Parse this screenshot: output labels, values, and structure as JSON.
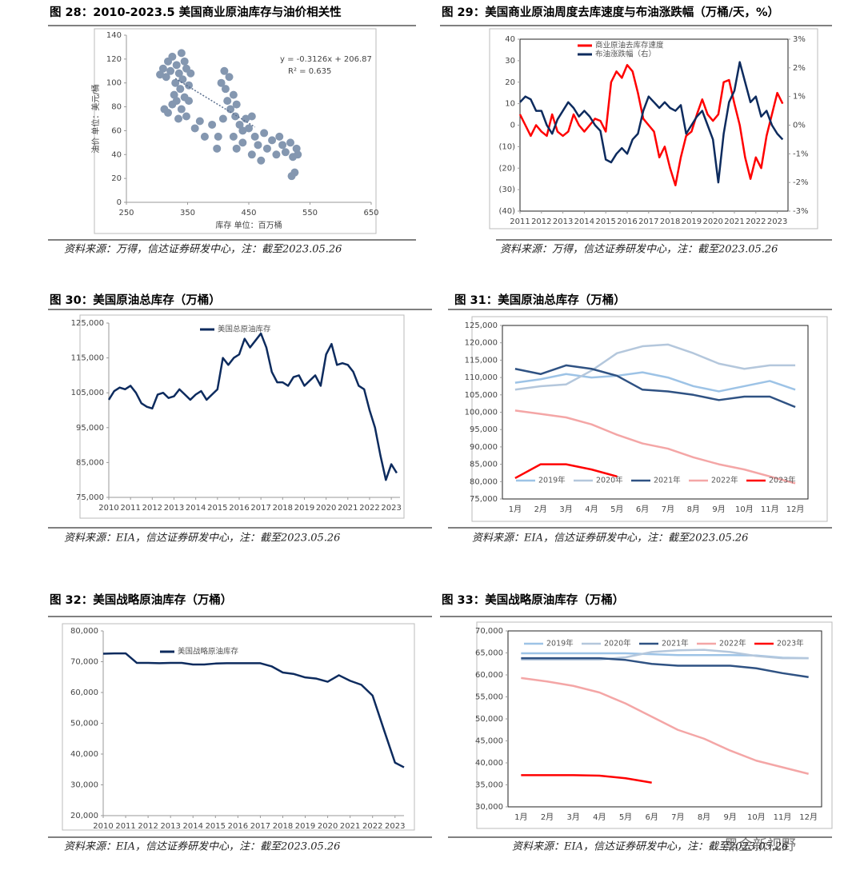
{
  "watermark": "黑金新视野",
  "chart_data": [
    {
      "type": "scatter",
      "title": "图 28：2010-2023.5 美国商业原油库存与油价相关性",
      "source": "资料来源：万得，信达证券研发中心，注：截至2023.05.26",
      "xlabel": "库存 单位：百万桶",
      "ylabel": "油价 单位：美元/桶",
      "annotations": [
        "y = -0.3126x + 206.87",
        "R² = 0.635"
      ],
      "color": "#8497b0",
      "x": [
        305,
        310,
        315,
        318,
        322,
        325,
        330,
        332,
        336,
        340,
        342,
        345,
        348,
        352,
        355,
        338,
        328,
        312,
        318,
        325,
        332,
        340,
        348,
        352,
        345,
        335,
        362,
        370,
        378,
        405,
        410,
        412,
        415,
        418,
        420,
        425,
        428,
        430,
        435,
        440,
        408,
        400,
        425,
        430,
        440,
        450,
        455,
        460,
        465,
        470,
        475,
        480,
        488,
        495,
        500,
        505,
        510,
        518,
        522,
        528,
        530,
        525,
        520,
        445,
        455,
        390,
        398
      ],
      "values": [
        107,
        112,
        105,
        118,
        110,
        122,
        100,
        115,
        108,
        125,
        103,
        118,
        112,
        98,
        108,
        95,
        90,
        78,
        75,
        82,
        85,
        78,
        72,
        85,
        88,
        70,
        62,
        68,
        55,
        100,
        110,
        95,
        85,
        105,
        78,
        90,
        72,
        82,
        65,
        60,
        70,
        55,
        55,
        45,
        50,
        62,
        40,
        55,
        48,
        35,
        58,
        45,
        52,
        40,
        55,
        48,
        42,
        50,
        38,
        45,
        40,
        25,
        22,
        70,
        72,
        65,
        45
      ],
      "trendline": {
        "x": [
          330,
          460
        ],
        "values": [
          103.7,
          63.1
        ]
      },
      "xlim": [
        250,
        650
      ],
      "xticks": [
        250,
        350,
        450,
        550,
        650
      ],
      "ylim": [
        0,
        140
      ],
      "yticks": [
        0,
        20,
        40,
        60,
        80,
        100,
        120,
        140
      ],
      "grid": false
    },
    {
      "type": "line",
      "title": "图 29：美国商业原油周度去库速度与布油涨跌幅（万桶/天，%）",
      "source": "资料来源：万得，信达证券研发中心，注：截至2023.05.26",
      "x": [
        2011,
        2011.25,
        2011.5,
        2011.75,
        2012,
        2012.25,
        2012.5,
        2012.75,
        2013,
        2013.25,
        2013.5,
        2013.75,
        2014,
        2014.25,
        2014.5,
        2014.75,
        2015,
        2015.25,
        2015.5,
        2015.75,
        2016,
        2016.25,
        2016.5,
        2016.75,
        2017,
        2017.25,
        2017.5,
        2017.75,
        2018,
        2018.25,
        2018.5,
        2018.75,
        2019,
        2019.25,
        2019.5,
        2019.75,
        2020,
        2020.25,
        2020.5,
        2020.75,
        2021,
        2021.25,
        2021.5,
        2021.75,
        2022,
        2022.25,
        2022.5,
        2022.75,
        2023,
        2023.25
      ],
      "series": [
        {
          "name": "商业原油去库存速度",
          "color": "#ff0000",
          "values": [
            5,
            0,
            -5,
            0,
            -3,
            -5,
            5,
            -3,
            -5,
            -3,
            5,
            0,
            -3,
            0,
            3,
            2,
            -3,
            20,
            25,
            22,
            28,
            25,
            15,
            3,
            0,
            -3,
            -15,
            -10,
            -20,
            -28,
            -15,
            -5,
            -3,
            5,
            12,
            5,
            2,
            5,
            20,
            21,
            10,
            0,
            -15,
            -25,
            -15,
            -20,
            -5,
            5,
            15,
            10
          ]
        },
        {
          "name": "布油涨跌幅（右）",
          "color": "#0d2b5e",
          "axis": "y2",
          "values": [
            0.8,
            1.0,
            0.9,
            0.5,
            0.5,
            0.0,
            -0.3,
            0.2,
            0.5,
            0.8,
            0.6,
            0.3,
            0.5,
            0.3,
            0.0,
            -0.2,
            -1.2,
            -1.3,
            -1.0,
            -0.8,
            -1.0,
            -0.5,
            -0.3,
            0.5,
            1.0,
            0.8,
            0.6,
            0.8,
            0.6,
            0.5,
            0.7,
            -0.3,
            0.0,
            0.3,
            0.5,
            0.0,
            -0.5,
            -2.0,
            -0.3,
            0.8,
            1.2,
            2.2,
            1.5,
            0.8,
            1.0,
            0.3,
            0.5,
            0.0,
            -0.3,
            -0.5
          ]
        }
      ],
      "xlim": [
        2011,
        2023.5
      ],
      "xticks": [
        2011,
        2012,
        2013,
        2014,
        2015,
        2016,
        2017,
        2018,
        2019,
        2020,
        2021,
        2022,
        2023
      ],
      "ylim": [
        -40,
        40
      ],
      "yticks": [
        {
          "value": -40,
          "label": "(40)"
        },
        {
          "value": -30,
          "label": "(30)"
        },
        {
          "value": -20,
          "label": "(20)"
        },
        {
          "value": -10,
          "label": "(10)"
        },
        0,
        10,
        20,
        30,
        40
      ],
      "y2lim": [
        -3,
        3
      ],
      "y2ticks": [
        {
          "value": -3,
          "label": "-3%"
        },
        {
          "value": -2,
          "label": "-2%"
        },
        {
          "value": -1,
          "label": "-1%"
        },
        {
          "value": 0,
          "label": "0%"
        },
        {
          "value": 1,
          "label": "1%"
        },
        {
          "value": 2,
          "label": "2%"
        },
        {
          "value": 3,
          "label": "3%"
        }
      ],
      "grid": false
    },
    {
      "type": "line",
      "title": "图 30：美国原油总库存（万桶）",
      "source": "资料来源：EIA，信达证券研发中心，注：截至2023.05.26",
      "x": [
        2010,
        2010.25,
        2010.5,
        2010.75,
        2011,
        2011.25,
        2011.5,
        2011.75,
        2012,
        2012.25,
        2012.5,
        2012.75,
        2013,
        2013.25,
        2013.5,
        2013.75,
        2014,
        2014.25,
        2014.5,
        2014.75,
        2015,
        2015.25,
        2015.5,
        2015.75,
        2016,
        2016.25,
        2016.5,
        2016.75,
        2017,
        2017.25,
        2017.5,
        2017.75,
        2018,
        2018.25,
        2018.5,
        2018.75,
        2019,
        2019.25,
        2019.5,
        2019.75,
        2020,
        2020.25,
        2020.5,
        2020.75,
        2021,
        2021.25,
        2021.5,
        2021.75,
        2022,
        2022.25,
        2022.5,
        2022.75,
        2023,
        2023.25
      ],
      "series": [
        {
          "name": "美国总原油库存",
          "color": "#0d2b5e",
          "values": [
            103000,
            105500,
            106500,
            106000,
            107000,
            105000,
            102000,
            101000,
            100500,
            104500,
            105000,
            103500,
            104000,
            106000,
            104500,
            103000,
            104500,
            105500,
            103000,
            104500,
            106000,
            115000,
            113000,
            115000,
            116000,
            120500,
            118000,
            120000,
            122000,
            118000,
            111000,
            108000,
            108000,
            107000,
            109500,
            110000,
            107000,
            108500,
            110000,
            107000,
            116000,
            119000,
            113000,
            113500,
            113000,
            111000,
            107000,
            106000,
            100000,
            95000,
            87000,
            80000,
            84500,
            82000
          ]
        }
      ],
      "xlim": [
        2010,
        2023.4
      ],
      "xticks": [
        2010,
        2011,
        2012,
        2013,
        2014,
        2015,
        2016,
        2017,
        2018,
        2019,
        2020,
        2021,
        2022,
        2023
      ],
      "ylim": [
        75000,
        125000
      ],
      "yticks": [
        {
          "value": 75000,
          "label": "75,000"
        },
        {
          "value": 85000,
          "label": "85,000"
        },
        {
          "value": 95000,
          "label": "95,000"
        },
        {
          "value": 105000,
          "label": "105,000"
        },
        {
          "value": 115000,
          "label": "115,000"
        },
        {
          "value": 125000,
          "label": "125,000"
        }
      ],
      "grid": false
    },
    {
      "type": "line",
      "title": "图 31：美国原油总库存（万桶）",
      "source": "资料来源：EIA，信达证券研发中心，注：截至2023.05.26",
      "categories": [
        "1月",
        "2月",
        "3月",
        "4月",
        "5月",
        "6月",
        "7月",
        "8月",
        "9月",
        "10月",
        "11月",
        "12月"
      ],
      "series": [
        {
          "name": "2019年",
          "color": "#9dc3e6",
          "values": [
            108500,
            109500,
            111000,
            110000,
            110500,
            111500,
            110000,
            107500,
            106000,
            107500,
            109000,
            106500
          ]
        },
        {
          "name": "2020年",
          "color": "#b4c7dc",
          "values": [
            106500,
            107500,
            108000,
            112000,
            117000,
            119000,
            119500,
            117000,
            114000,
            112500,
            113500,
            113500
          ]
        },
        {
          "name": "2021年",
          "color": "#2f5283",
          "values": [
            112500,
            111000,
            113500,
            112500,
            110500,
            106500,
            106000,
            105000,
            103500,
            104500,
            104500,
            101500
          ]
        },
        {
          "name": "2022年",
          "color": "#f4a6a6",
          "values": [
            100500,
            99500,
            98500,
            96500,
            93500,
            91000,
            89500,
            87000,
            85000,
            83500,
            81500,
            79500
          ]
        },
        {
          "name": "2023年",
          "color": "#ff0000",
          "values": [
            81000,
            85000,
            85000,
            83500,
            81500,
            null,
            null,
            null,
            null,
            null,
            null,
            null
          ]
        }
      ],
      "ylim": [
        75000,
        125000
      ],
      "yticks": [
        {
          "value": 75000,
          "label": "75,000"
        },
        {
          "value": 80000,
          "label": "80,000"
        },
        {
          "value": 85000,
          "label": "85,000"
        },
        {
          "value": 90000,
          "label": "90,000"
        },
        {
          "value": 95000,
          "label": "95,000"
        },
        {
          "value": 100000,
          "label": "100,000"
        },
        {
          "value": 105000,
          "label": "105,000"
        },
        {
          "value": 110000,
          "label": "110,000"
        },
        {
          "value": 115000,
          "label": "115,000"
        },
        {
          "value": 120000,
          "label": "120,000"
        },
        {
          "value": 125000,
          "label": "125,000"
        }
      ],
      "grid": false
    },
    {
      "type": "line",
      "title": "图 32：美国战略原油库存（万桶）",
      "source": "资料来源：EIA，信达证券研发中心，注：截至2023.05.26",
      "x": [
        2010,
        2010.5,
        2011,
        2011.5,
        2012,
        2012.5,
        2013,
        2013.5,
        2014,
        2014.5,
        2015,
        2015.5,
        2016,
        2016.5,
        2017,
        2017.5,
        2018,
        2018.5,
        2019,
        2019.5,
        2020,
        2020.5,
        2021,
        2021.5,
        2022,
        2022.5,
        2023,
        2023.4
      ],
      "series": [
        {
          "name": "美国战略原油库存",
          "color": "#0d2b5e",
          "values": [
            72600,
            72700,
            72700,
            69600,
            69600,
            69500,
            69600,
            69600,
            69100,
            69100,
            69400,
            69500,
            69500,
            69500,
            69500,
            68500,
            66500,
            66000,
            64900,
            64500,
            63500,
            65600,
            63800,
            62500,
            59000,
            48000,
            37200,
            35700
          ]
        }
      ],
      "xlim": [
        2010,
        2023.4
      ],
      "xticks": [
        2010,
        2011,
        2012,
        2013,
        2014,
        2015,
        2016,
        2017,
        2018,
        2019,
        2020,
        2021,
        2022,
        2023
      ],
      "ylim": [
        20000,
        80000
      ],
      "yticks": [
        {
          "value": 20000,
          "label": "20,000"
        },
        {
          "value": 30000,
          "label": "30,000"
        },
        {
          "value": 40000,
          "label": "40,000"
        },
        {
          "value": 50000,
          "label": "50,000"
        },
        {
          "value": 60000,
          "label": "60,000"
        },
        {
          "value": 70000,
          "label": "70,000"
        },
        {
          "value": 80000,
          "label": "80,000"
        }
      ],
      "grid": false
    },
    {
      "type": "line",
      "title": "图 33：美国战略原油库存（万桶）",
      "source": "资料来源：EIA，信达证券研发中心，注：截至2023.05.26",
      "categories": [
        "1月",
        "2月",
        "3月",
        "4月",
        "5月",
        "6月",
        "7月",
        "8月",
        "9月",
        "10月",
        "11月",
        "12月"
      ],
      "series": [
        {
          "name": "2019年",
          "color": "#9dc3e6",
          "values": [
            64900,
            64900,
            64900,
            64900,
            64900,
            64700,
            64500,
            64500,
            64500,
            64400,
            63900,
            63800
          ]
        },
        {
          "name": "2020年",
          "color": "#b4c7dc",
          "values": [
            63500,
            63500,
            63500,
            63500,
            64000,
            65200,
            65600,
            65700,
            65200,
            64300,
            63800,
            63800
          ]
        },
        {
          "name": "2021年",
          "color": "#2f5283",
          "values": [
            63800,
            63800,
            63800,
            63800,
            63400,
            62500,
            62100,
            62100,
            62100,
            61500,
            60400,
            59500
          ]
        },
        {
          "name": "2022年",
          "color": "#f4a6a6",
          "values": [
            59300,
            58500,
            57500,
            56000,
            53500,
            50500,
            47500,
            45500,
            42800,
            40500,
            39000,
            37500
          ]
        },
        {
          "name": "2023年",
          "color": "#ff0000",
          "values": [
            37200,
            37200,
            37200,
            37100,
            36500,
            35500,
            null,
            null,
            null,
            null,
            null,
            null
          ]
        }
      ],
      "ylim": [
        30000,
        70000
      ],
      "yticks": [
        {
          "value": 30000,
          "label": "30,000"
        },
        {
          "value": 35000,
          "label": "35,000"
        },
        {
          "value": 40000,
          "label": "40,000"
        },
        {
          "value": 45000,
          "label": "45,000"
        },
        {
          "value": 50000,
          "label": "50,000"
        },
        {
          "value": 55000,
          "label": "55,000"
        },
        {
          "value": 60000,
          "label": "60,000"
        },
        {
          "value": 65000,
          "label": "65,000"
        },
        {
          "value": 70000,
          "label": "70,000"
        }
      ],
      "grid": false
    }
  ]
}
